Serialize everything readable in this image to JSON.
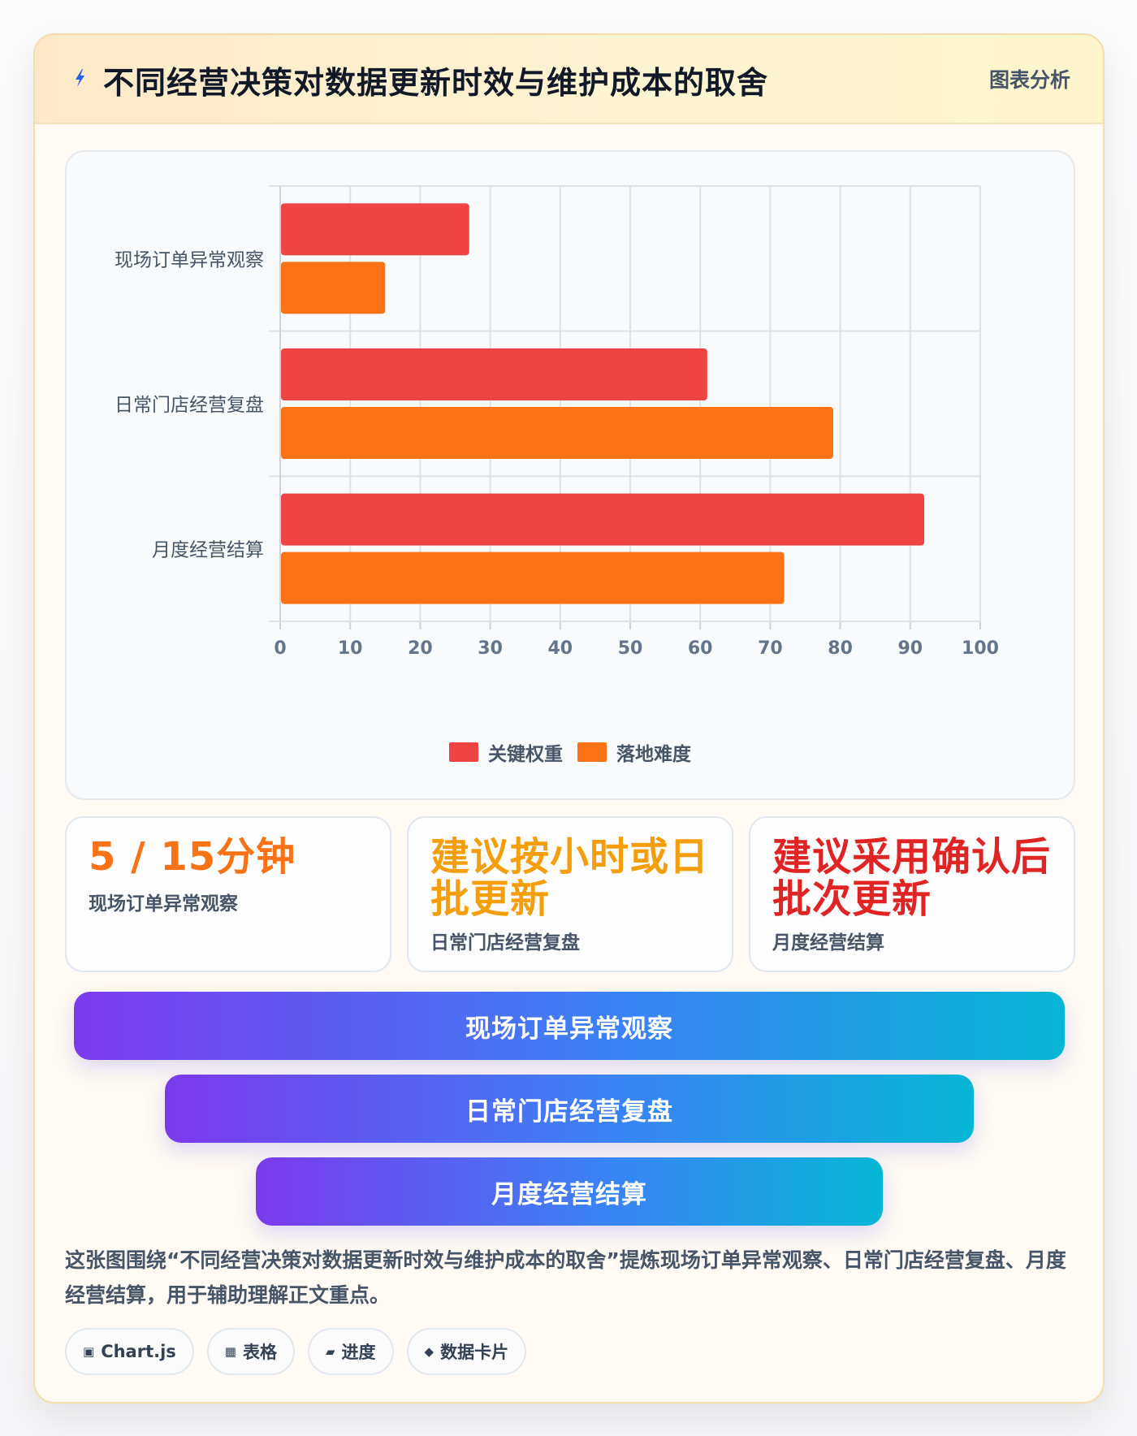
{
  "header": {
    "title": "不同经营决策对数据更新时效与维护成本的取舍",
    "tag": "图表分析",
    "icon": "lightning-icon"
  },
  "chart_data": {
    "type": "bar",
    "orientation": "horizontal",
    "categories": [
      "现场订单异常观察",
      "日常门店经营复盘",
      "月度经营结算"
    ],
    "series": [
      {
        "name": "关键权重",
        "values": [
          27,
          61,
          92
        ],
        "color": "#ef4444"
      },
      {
        "name": "落地难度",
        "values": [
          15,
          79,
          72
        ],
        "color": "#f97316"
      }
    ],
    "xlim": [
      0,
      100
    ],
    "x_ticks": [
      "0",
      "10",
      "20",
      "30",
      "40",
      "50",
      "60",
      "70",
      "80",
      "90",
      "100"
    ],
    "grid": true,
    "legend_position": "bottom"
  },
  "stats": [
    {
      "value": "5 / 15分钟",
      "label": "现场订单异常观察",
      "color": "#f97316"
    },
    {
      "value": "建议按小时或日批更新",
      "label": "日常门店经营复盘",
      "color": "#f59e0b"
    },
    {
      "value": "建议采用确认后批次更新",
      "label": "月度经营结算",
      "color": "#e02424"
    }
  ],
  "funnel": [
    {
      "label": "现场订单异常观察"
    },
    {
      "label": "日常门店经营复盘"
    },
    {
      "label": "月度经营结算"
    }
  ],
  "description": "这张图围绕“不同经营决策对数据更新时效与维护成本的取舍”提炼现场订单异常观察、日常门店经营复盘、月度经营结算，用于辅助理解正文重点。",
  "chips": [
    {
      "icon": "▣",
      "icon_name": "chart-icon",
      "label": "Chart.js"
    },
    {
      "icon": "▦",
      "icon_name": "table-icon",
      "label": "表格"
    },
    {
      "icon": "▰",
      "icon_name": "progress-icon",
      "label": "进度"
    },
    {
      "icon": "◆",
      "icon_name": "card-icon",
      "label": "数据卡片"
    }
  ]
}
